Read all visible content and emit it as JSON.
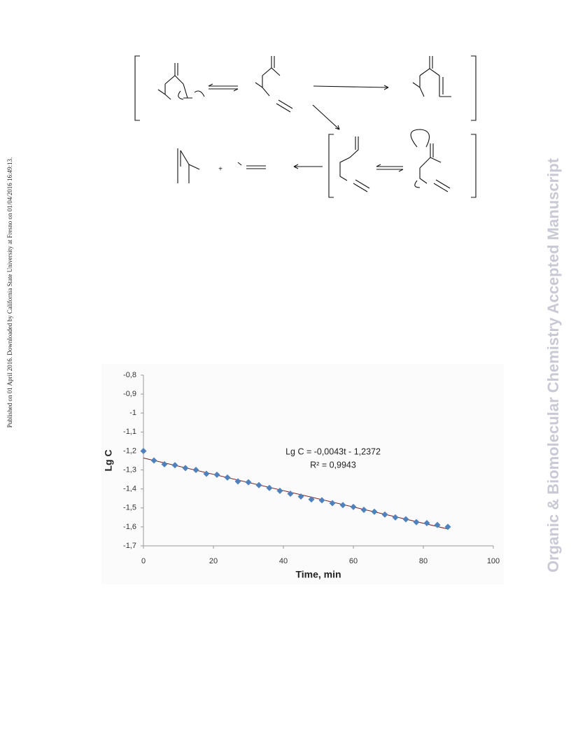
{
  "side_note": "Published on 01 April 2016. Downloaded by California State University at Fresno on 01/04/2016 16:49:13.",
  "watermark": "Organic & Biomolecular Chemistry Accepted Manuscript",
  "scheme": {
    "plus": "+"
  },
  "chart_data": {
    "type": "scatter",
    "ylabel": "Lg C",
    "xlabel": "Time, min",
    "annotations": [
      "Lg C = -0,0043t - 1,2372",
      "R² = 0,9943"
    ],
    "x": [
      0,
      3,
      6,
      9,
      12,
      15,
      18,
      21,
      24,
      27,
      30,
      33,
      36,
      39,
      42,
      45,
      48,
      51,
      54,
      57,
      60,
      63,
      66,
      69,
      72,
      75,
      78,
      81,
      84,
      87
    ],
    "values": [
      -1.2,
      -1.25,
      -1.27,
      -1.275,
      -1.29,
      -1.3,
      -1.32,
      -1.325,
      -1.34,
      -1.36,
      -1.365,
      -1.38,
      -1.395,
      -1.41,
      -1.425,
      -1.44,
      -1.455,
      -1.46,
      -1.475,
      -1.485,
      -1.495,
      -1.51,
      -1.52,
      -1.535,
      -1.55,
      -1.56,
      -1.575,
      -1.58,
      -1.59,
      -1.6
    ],
    "color": "#4f81bd",
    "trendline": {
      "x": [
        0,
        87
      ],
      "values": [
        -1.237,
        -1.611
      ],
      "color": "#7a1f1f"
    },
    "xlim": [
      0,
      100
    ],
    "xticks": [
      0,
      20,
      40,
      60,
      80,
      100
    ],
    "ylim": [
      -1.7,
      -0.8
    ],
    "yticks": [
      {
        "value": -0.8,
        "label": "-0,8"
      },
      {
        "value": -0.9,
        "label": "-0,9"
      },
      {
        "value": -1,
        "label": "-1"
      },
      {
        "value": -1.1,
        "label": "-1,1"
      },
      {
        "value": -1.2,
        "label": "-1,2"
      },
      {
        "value": -1.3,
        "label": "-1,3"
      },
      {
        "value": -1.4,
        "label": "-1,4"
      },
      {
        "value": -1.5,
        "label": "-1,5"
      },
      {
        "value": -1.6,
        "label": "-1,6"
      },
      {
        "value": -1.7,
        "label": "-1,7"
      }
    ],
    "grid": false
  }
}
